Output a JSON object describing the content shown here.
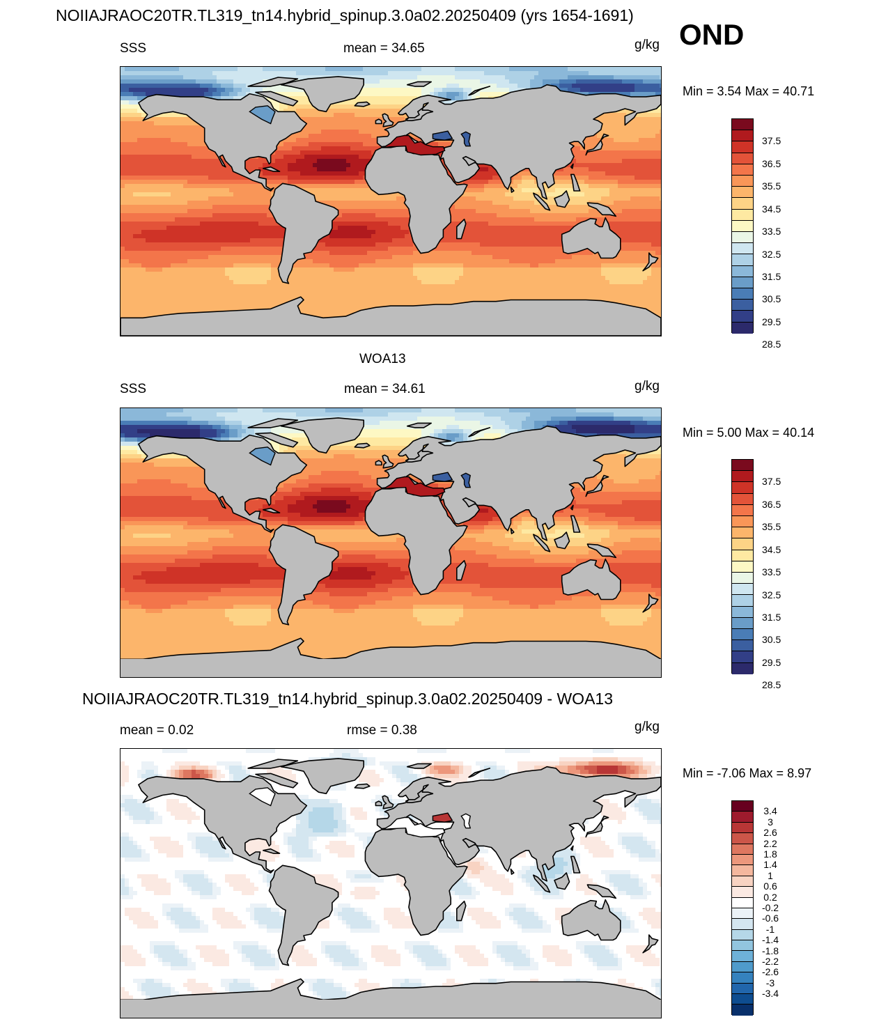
{
  "header": {
    "title": "NOIIAJRAOC20TR.TL319_tn14.hybrid_spinup.3.0a02.20250409 (yrs 1654-1691)",
    "season": "OND"
  },
  "colors": {
    "land": "#bdbdbd",
    "coast": "#000000",
    "sss_levels": [
      "#2c2a6b",
      "#323f87",
      "#3b5fa0",
      "#4a7db6",
      "#6a9dc8",
      "#8bb8d9",
      "#aed1e6",
      "#cfe6f0",
      "#eaf6e6",
      "#fdf8c4",
      "#fee9a2",
      "#fdd386",
      "#fcb56b",
      "#f99658",
      "#f3754a",
      "#e35339",
      "#cf3327",
      "#b01a1e",
      "#7a0a1e"
    ],
    "diff_levels": [
      "#08306b",
      "#0e4d90",
      "#2166ac",
      "#3582be",
      "#4f9bcb",
      "#6eb1d8",
      "#92c5df",
      "#b5d7e8",
      "#d4e6f0",
      "#ebf2f7",
      "#ffffff",
      "#fbe9e2",
      "#f8d3c2",
      "#f4b79e",
      "#ec977c",
      "#de7760",
      "#cc5649",
      "#b83636",
      "#9e1b2d",
      "#67001f"
    ]
  },
  "panels": [
    {
      "panel_title": "",
      "left_label": "SSS",
      "center_label": "mean =  34.65",
      "units": "g/kg",
      "minmax": "Min =   3.54 Max =  40.71",
      "colorbar_ticks": [
        "37.5",
        "36.5",
        "35.5",
        "34.5",
        "33.5",
        "32.5",
        "31.5",
        "30.5",
        "29.5",
        "28.5"
      ],
      "field": "model"
    },
    {
      "panel_title": "WOA13",
      "left_label": "SSS",
      "center_label": "mean =  34.61",
      "units": "g/kg",
      "minmax": "Min =   5.00 Max =  40.14",
      "colorbar_ticks": [
        "37.5",
        "36.5",
        "35.5",
        "34.5",
        "33.5",
        "32.5",
        "31.5",
        "30.5",
        "29.5",
        "28.5"
      ],
      "field": "obs"
    },
    {
      "panel_title": "NOIIAJRAOC20TR.TL319_tn14.hybrid_spinup.3.0a02.20250409 - WOA13",
      "left_label": "mean =   0.02",
      "center_label": "rmse =   0.38",
      "units": "g/kg",
      "minmax": "Min =  -7.06 Max =   8.97",
      "colorbar_ticks": [
        "3.4",
        "3",
        "2.6",
        "2.2",
        "1.8",
        "1.4",
        "1",
        "0.6",
        "0.2",
        "-0.2",
        "-0.6",
        "-1",
        "-1.4",
        "-1.8",
        "-2.2",
        "-2.6",
        "-3",
        "-3.4"
      ],
      "field": "diff"
    }
  ]
}
